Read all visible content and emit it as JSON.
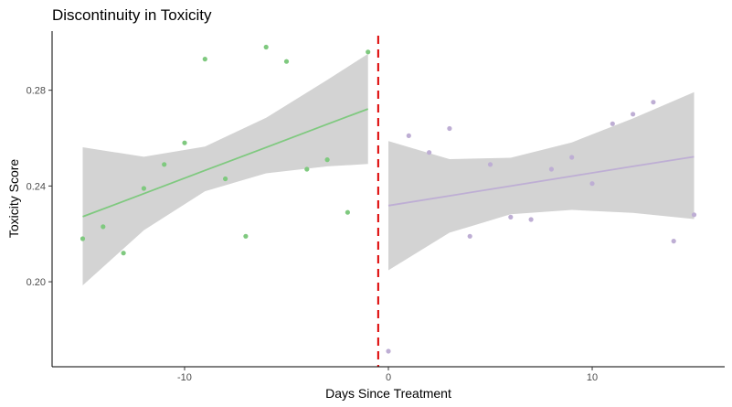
{
  "chart_data": {
    "type": "scatter",
    "title": "Discontinuity in Toxicity",
    "xlabel": "Days Since Treatment",
    "ylabel": "Toxicity Score",
    "xlim": [
      -16.5,
      16.5
    ],
    "ylim": [
      0.1645,
      0.3047
    ],
    "x_ticks": [
      -10,
      0,
      10
    ],
    "y_ticks": [
      0.2,
      0.24,
      0.28
    ],
    "x_tick_labels": [
      "-10",
      "0",
      "10"
    ],
    "y_tick_labels": [
      "0.20",
      "0.24",
      "0.28"
    ],
    "grid": false,
    "legend": "none",
    "cutoff": {
      "x": -0.5,
      "color": "#dd0000",
      "style": "dashed"
    },
    "ribbon_color": "#d3d3d3",
    "series": [
      {
        "side": "before",
        "color": "#7fc97f",
        "points": [
          {
            "x": -15,
            "y": 0.218
          },
          {
            "x": -14,
            "y": 0.223
          },
          {
            "x": -13,
            "y": 0.212
          },
          {
            "x": -12,
            "y": 0.239
          },
          {
            "x": -11,
            "y": 0.249
          },
          {
            "x": -10,
            "y": 0.258
          },
          {
            "x": -9,
            "y": 0.293
          },
          {
            "x": -8,
            "y": 0.243
          },
          {
            "x": -7,
            "y": 0.219
          },
          {
            "x": -6,
            "y": 0.298
          },
          {
            "x": -5,
            "y": 0.292
          },
          {
            "x": -4,
            "y": 0.247
          },
          {
            "x": -3,
            "y": 0.251
          },
          {
            "x": -2,
            "y": 0.229
          },
          {
            "x": -1,
            "y": 0.296
          }
        ],
        "fit": {
          "x": [
            -15,
            -12,
            -9,
            -6,
            -3,
            -1
          ],
          "y": [
            0.2272,
            0.2368,
            0.2465,
            0.2561,
            0.2658,
            0.2722
          ],
          "lower": [
            0.1985,
            0.2215,
            0.2378,
            0.2453,
            0.2482,
            0.2492
          ],
          "upper": [
            0.2562,
            0.2522,
            0.2565,
            0.2685,
            0.2843,
            0.2952
          ]
        }
      },
      {
        "side": "after",
        "color": "#beaed4",
        "points": [
          {
            "x": 0,
            "y": 0.171
          },
          {
            "x": 1,
            "y": 0.261
          },
          {
            "x": 2,
            "y": 0.254
          },
          {
            "x": 3,
            "y": 0.264
          },
          {
            "x": 4,
            "y": 0.219
          },
          {
            "x": 5,
            "y": 0.249
          },
          {
            "x": 6,
            "y": 0.227
          },
          {
            "x": 7,
            "y": 0.226
          },
          {
            "x": 8,
            "y": 0.247
          },
          {
            "x": 9,
            "y": 0.252
          },
          {
            "x": 10,
            "y": 0.241
          },
          {
            "x": 11,
            "y": 0.266
          },
          {
            "x": 12,
            "y": 0.27
          },
          {
            "x": 13,
            "y": 0.275
          },
          {
            "x": 14,
            "y": 0.217
          },
          {
            "x": 15,
            "y": 0.228
          }
        ],
        "fit": {
          "x": [
            0,
            3,
            6,
            9,
            12,
            15
          ],
          "y": [
            0.2318,
            0.2359,
            0.24,
            0.2441,
            0.2482,
            0.2522
          ],
          "lower": [
            0.2048,
            0.2205,
            0.2282,
            0.23,
            0.2288,
            0.2262
          ],
          "upper": [
            0.2588,
            0.2512,
            0.2518,
            0.2582,
            0.2682,
            0.2792
          ]
        }
      }
    ]
  }
}
